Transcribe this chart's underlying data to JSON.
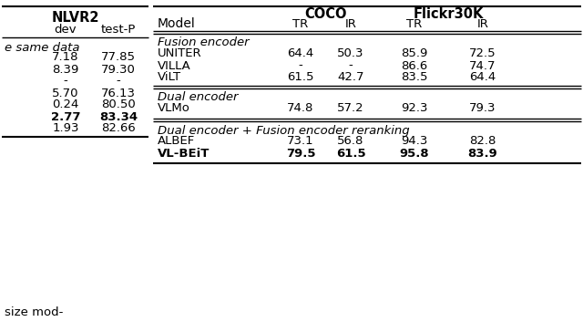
{
  "left_table": {
    "title": "NLVR2",
    "col_headers": [
      "dev",
      "test-P"
    ],
    "section_label": "e same data",
    "rows": [
      {
        "dev": "7.18",
        "test_p": "77.85",
        "bold": false
      },
      {
        "dev": "8.39",
        "test_p": "79.30",
        "bold": false
      },
      {
        "dev": "-",
        "test_p": "-",
        "bold": false
      },
      {
        "dev": "5.70",
        "test_p": "76.13",
        "bold": false
      },
      {
        "dev": "0.24",
        "test_p": "80.50",
        "bold": false
      },
      {
        "dev": "2.77",
        "test_p": "83.34",
        "bold": true
      },
      {
        "dev": "1.93",
        "test_p": "82.66",
        "bold": false
      }
    ],
    "bottom_note": "size mod-"
  },
  "right_table": {
    "col_group1": "COCO",
    "col_group2": "Flickr30K",
    "sections": [
      {
        "section_label": "Fusion encoder",
        "rows": [
          {
            "model": "UNITER",
            "coco_tr": "64.4",
            "coco_ir": "50.3",
            "flickr_tr": "85.9",
            "flickr_ir": "72.5",
            "bold": false
          },
          {
            "model": "VILLA",
            "coco_tr": "-",
            "coco_ir": "-",
            "flickr_tr": "86.6",
            "flickr_ir": "74.7",
            "bold": false
          },
          {
            "model": "ViLT",
            "coco_tr": "61.5",
            "coco_ir": "42.7",
            "flickr_tr": "83.5",
            "flickr_ir": "64.4",
            "bold": false
          }
        ]
      },
      {
        "section_label": "Dual encoder",
        "rows": [
          {
            "model": "VLMo",
            "coco_tr": "74.8",
            "coco_ir": "57.2",
            "flickr_tr": "92.3",
            "flickr_ir": "79.3",
            "bold": false
          }
        ]
      },
      {
        "section_label": "Dual encoder + Fusion encoder reranking",
        "rows": [
          {
            "model": "ALBEF",
            "coco_tr": "73.1",
            "coco_ir": "56.8",
            "flickr_tr": "94.3",
            "flickr_ir": "82.8",
            "bold": false
          },
          {
            "model": "VL-BEiT",
            "coco_tr": "79.5",
            "coco_ir": "61.5",
            "flickr_tr": "95.8",
            "flickr_ir": "83.9",
            "bold": true
          }
        ]
      }
    ]
  },
  "bg_color": "#ffffff",
  "text_color": "#000000"
}
